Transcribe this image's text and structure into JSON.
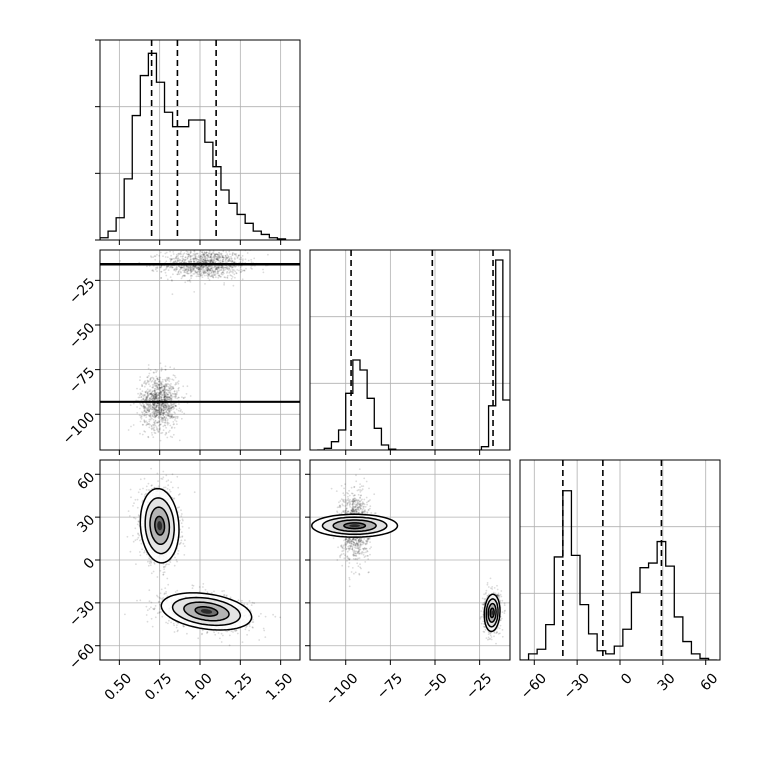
{
  "chart_data": {
    "type": "corner",
    "colors": {
      "line": "#000000",
      "grid": "#b0b0b0",
      "fill_levels": [
        "#ffffff",
        "#e4e4e4",
        "#b4b4b4",
        "#6e6e6e",
        "#2a2a2a"
      ]
    },
    "grid": true,
    "parameters": [
      {
        "id": "p0",
        "range": [
          0.38,
          1.62
        ],
        "ticks": [
          0.5,
          0.75,
          1.0,
          1.25,
          1.5
        ],
        "tick_labels": [
          "0.50",
          "0.75",
          "1.00",
          "1.25",
          "1.50"
        ],
        "quantiles": [
          0.7,
          0.86,
          1.1
        ]
      },
      {
        "id": "p1",
        "range": [
          -120,
          -8
        ],
        "ticks": [
          -100,
          -75,
          -50,
          -25
        ],
        "tick_labels": [
          "−100",
          "−75",
          "−50",
          "−25"
        ],
        "quantiles": [
          -97,
          -51.5,
          -17.5
        ]
      },
      {
        "id": "p2",
        "range": [
          -70,
          70
        ],
        "ticks": [
          -60,
          -30,
          0,
          30,
          60
        ],
        "tick_labels": [
          "−60",
          "−30",
          "0",
          "30",
          "60"
        ],
        "quantiles": [
          -40,
          -12,
          29
        ]
      }
    ],
    "histograms": [
      {
        "param": "p0",
        "bin_edges": [
          0.38,
          0.43,
          0.48,
          0.53,
          0.58,
          0.63,
          0.68,
          0.73,
          0.78,
          0.83,
          0.88,
          0.93,
          0.98,
          1.03,
          1.08,
          1.13,
          1.18,
          1.23,
          1.28,
          1.33,
          1.38,
          1.43,
          1.48,
          1.53
        ],
        "counts": [
          2,
          8,
          20,
          55,
          112,
          148,
          168,
          142,
          115,
          102,
          102,
          108,
          108,
          88,
          66,
          45,
          33,
          23,
          15,
          8,
          5,
          2,
          1
        ],
        "ylim": [
          0,
          180
        ]
      },
      {
        "param": "p1",
        "bin_edges": [
          -116,
          -112,
          -108,
          -104,
          -100,
          -96,
          -92,
          -88,
          -84,
          -80,
          -76,
          -72,
          -68,
          -64,
          -60,
          -56,
          -52,
          -48,
          -44,
          -40,
          -36,
          -32,
          -28,
          -24,
          -20,
          -16,
          -12,
          -8
        ],
        "counts": [
          0,
          2,
          10,
          24,
          68,
          108,
          96,
          62,
          26,
          6,
          1,
          0,
          0,
          0,
          0,
          0,
          0,
          0,
          0,
          0,
          0,
          0,
          0,
          4,
          53,
          228,
          60
        ],
        "ylim": [
          0,
          240
        ]
      },
      {
        "param": "p2",
        "bin_edges": [
          -70,
          -64,
          -58,
          -52,
          -46,
          -40,
          -34,
          -28,
          -22,
          -16,
          -10,
          -4,
          2,
          8,
          14,
          20,
          26,
          32,
          38,
          44,
          50,
          56,
          62,
          68
        ],
        "counts": [
          0,
          4,
          7,
          23,
          67,
          110,
          68,
          36,
          17,
          6,
          4,
          9,
          20,
          44,
          60,
          63,
          77,
          61,
          28,
          12,
          4,
          1,
          0
        ],
        "ylim": [
          0,
          130
        ]
      }
    ],
    "pairs": [
      {
        "x": "p0",
        "y": "p1",
        "clusters": [
          {
            "cx": 1.03,
            "cy": -16,
            "sx": 0.13,
            "sy": 4,
            "rho": 0.0,
            "n": 1100,
            "contour_levels": [
              0.5,
              1.0,
              1.5,
              2.0
            ]
          },
          {
            "cx": 0.75,
            "cy": -93,
            "sx": 0.06,
            "sy": 7.5,
            "rho": 0.0,
            "n": 1100,
            "contour_levels": [
              0.5,
              1.0,
              1.5,
              2.0
            ]
          }
        ]
      },
      {
        "x": "p0",
        "y": "p2",
        "clusters": [
          {
            "cx": 0.75,
            "cy": 24,
            "sx": 0.06,
            "sy": 13,
            "rho": -0.1,
            "n": 1100,
            "contour_levels": [
              0.5,
              1.0,
              1.5,
              2.0
            ]
          },
          {
            "cx": 1.04,
            "cy": -36,
            "sx": 0.14,
            "sy": 6.5,
            "rho": -0.3,
            "n": 1100,
            "contour_levels": [
              0.5,
              1.0,
              1.5,
              2.0
            ]
          }
        ]
      },
      {
        "x": "p1",
        "y": "p2",
        "clusters": [
          {
            "cx": -95,
            "cy": 24,
            "sx": 4,
            "sy": 12,
            "rho": 0.0,
            "n": 1100,
            "contour_levels": [
              0.5,
              1.0,
              1.5,
              2.0
            ]
          },
          {
            "cx": -18,
            "cy": -37,
            "sx": 2.2,
            "sy": 6.5,
            "rho": 0.1,
            "n": 1100,
            "contour_levels": [
              0.5,
              1.0,
              1.5,
              2.0
            ]
          }
        ]
      }
    ]
  }
}
